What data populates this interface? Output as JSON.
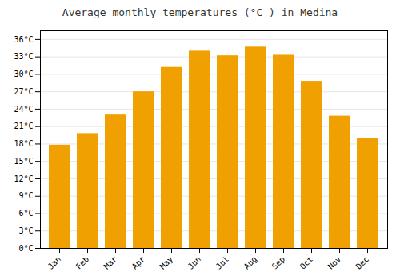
{
  "chart_data": {
    "type": "bar",
    "title": "Average monthly temperatures (°C ) in Medina",
    "categories": [
      "Jan",
      "Feb",
      "Mar",
      "Apr",
      "May",
      "Jun",
      "Jul",
      "Aug",
      "Sep",
      "Oct",
      "Nov",
      "Dec"
    ],
    "values": [
      17.8,
      19.8,
      23.0,
      27.0,
      31.2,
      34.0,
      33.2,
      34.7,
      33.3,
      28.8,
      22.8,
      19.0
    ],
    "color": "#F0A000",
    "ylim": [
      0,
      37.5
    ],
    "yticks": [
      {
        "value": 0,
        "label": "0°C"
      },
      {
        "value": 3,
        "label": "3°C"
      },
      {
        "value": 6,
        "label": "6°C"
      },
      {
        "value": 9,
        "label": "9°C"
      },
      {
        "value": 12,
        "label": "12°C"
      },
      {
        "value": 15,
        "label": "15°C"
      },
      {
        "value": 18,
        "label": "18°C"
      },
      {
        "value": 21,
        "label": "21°C"
      },
      {
        "value": 24,
        "label": "24°C"
      },
      {
        "value": 27,
        "label": "27°C"
      },
      {
        "value": 30,
        "label": "30°C"
      },
      {
        "value": 33,
        "label": "33°C"
      },
      {
        "value": 36,
        "label": "36°C"
      }
    ],
    "grid": true
  }
}
